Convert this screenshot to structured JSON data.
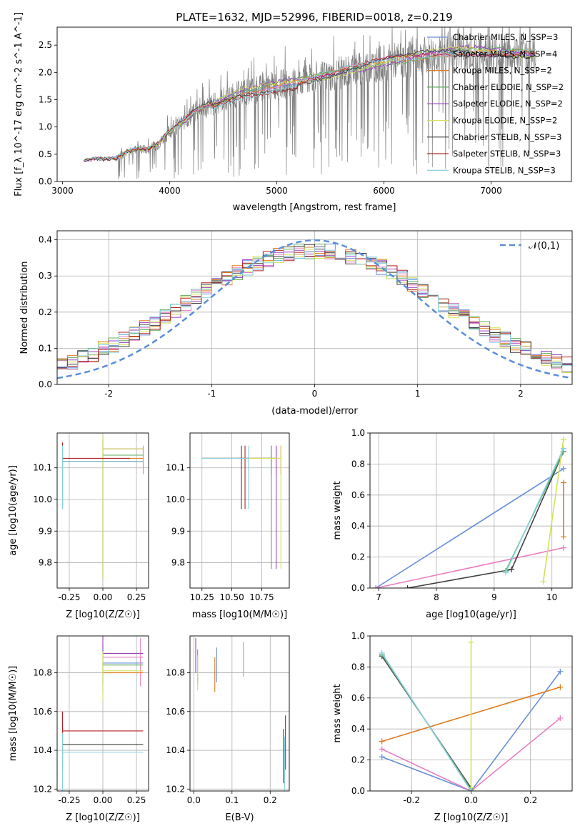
{
  "figure": {
    "title": "PLATE=1632, MJD=52996, FIBERID=0018, z=0.219"
  },
  "chart_data": [
    {
      "id": "spectrum",
      "type": "line",
      "xlabel": "wavelength [Angstrom, rest frame]",
      "ylabel": "Flux [f_λ 10^-17 erg cm^-2 s^-1 A^-1]",
      "xlim": [
        2950,
        7750
      ],
      "ylim": [
        0,
        2.83
      ],
      "xticks": [
        3000,
        4000,
        5000,
        6000,
        7000
      ],
      "yticks": [
        0.0,
        0.5,
        1.0,
        1.5,
        2.0,
        2.5
      ],
      "data": {
        "observed_color": "#7f7f7f",
        "continuum_x": [
          3200,
          3300,
          3400,
          3500,
          3600,
          3700,
          3800,
          3900,
          4000,
          4100,
          4200,
          4300,
          4400,
          4500,
          4600,
          4700,
          4800,
          4900,
          5000,
          5100,
          5200,
          5300,
          5400,
          5500,
          5600,
          5700,
          5800,
          5900,
          6000,
          6100,
          6200,
          6300,
          6400,
          6500,
          6600,
          6700,
          6800,
          6900,
          7000,
          7100,
          7200,
          7300,
          7400
        ],
        "continuum_y": [
          0.4,
          0.43,
          0.42,
          0.44,
          0.55,
          0.62,
          0.6,
          0.72,
          0.95,
          1.08,
          1.25,
          1.38,
          1.45,
          1.55,
          1.62,
          1.7,
          1.72,
          1.78,
          1.82,
          1.86,
          1.88,
          1.92,
          1.96,
          2.0,
          2.05,
          2.1,
          2.14,
          2.2,
          2.24,
          2.28,
          2.3,
          2.34,
          2.38,
          2.4,
          2.42,
          2.44,
          2.45,
          2.44,
          2.42,
          2.42,
          2.4,
          2.4,
          2.38
        ],
        "observed_noise_start": 3500
      },
      "legend_position": "upper right",
      "series": [
        {
          "name": "Chabrier MILES, N_SSP=3",
          "color": "#6a8fd8"
        },
        {
          "name": "Salpeter MILES, N_SSP=4",
          "color": "#e87fc0"
        },
        {
          "name": "Kroupa MILES, N_SSP=2",
          "color": "#e07b1f"
        },
        {
          "name": "Chabrier ELODIE, N_SSP=2",
          "color": "#5fa85f"
        },
        {
          "name": "Salpeter ELODIE, N_SSP=2",
          "color": "#9b3fc0"
        },
        {
          "name": "Kroupa ELODIE, N_SSP=2",
          "color": "#d4e157"
        },
        {
          "name": "Chabrier STELIB, N_SSP=3",
          "color": "#404040"
        },
        {
          "name": "Salpeter STELIB, N_SSP=3",
          "color": "#b22222"
        },
        {
          "name": "Kroupa STELIB, N_SSP=3",
          "color": "#88d0e0"
        }
      ]
    },
    {
      "id": "residuals",
      "type": "line",
      "xlabel": "(data-model)/error",
      "ylabel": "Normed distribution",
      "xlim": [
        -2.5,
        2.5
      ],
      "ylim": [
        0,
        0.425
      ],
      "xticks": [
        -2,
        -1,
        0,
        1,
        2
      ],
      "yticks": [
        0.0,
        0.1,
        0.2,
        0.3,
        0.4
      ],
      "grid": true,
      "gaussian_label": "𝒩(0,1)",
      "gaussian_color": "#5b8dd9",
      "bin_width": 0.1
    },
    {
      "id": "age_vs_Z",
      "type": "scatter",
      "xlabel": "Z [log10(Z/Z☉)]",
      "ylabel": "age  [log10(age/yr)]",
      "xlim": [
        -0.34,
        0.34
      ],
      "ylim": [
        9.72,
        10.21
      ],
      "xticks": [
        -0.25,
        0.0,
        0.25
      ],
      "yticks": [
        9.8,
        9.9,
        10.0,
        10.1
      ],
      "grid": true
    },
    {
      "id": "age_vs_mass",
      "type": "scatter",
      "xlabel": "mass [log10(M/M☉)]",
      "ylabel": "",
      "xlim": [
        10.15,
        10.98
      ],
      "ylim": [
        9.72,
        10.21
      ],
      "xticks": [
        10.25,
        10.5,
        10.75
      ],
      "yticks": [
        9.8,
        9.9,
        10.0,
        10.1
      ],
      "grid": true
    },
    {
      "id": "weight_vs_age",
      "type": "line",
      "xlabel": "age  [log10(age/yr)]",
      "ylabel": "mass weight",
      "xlim": [
        6.85,
        10.35
      ],
      "ylim": [
        0,
        1.0
      ],
      "xticks": [
        7,
        8,
        9,
        10
      ],
      "yticks": [
        0.0,
        0.2,
        0.4,
        0.6,
        0.8,
        1.0
      ],
      "grid": true
    },
    {
      "id": "mass_vs_Z",
      "type": "scatter",
      "xlabel": "Z [log10(Z/Z☉)]",
      "ylabel": "mass [log10(M/M☉)]",
      "xlim": [
        -0.34,
        0.34
      ],
      "ylim": [
        10.19,
        10.99
      ],
      "xticks": [
        -0.25,
        0.0,
        0.25
      ],
      "yticks": [
        10.2,
        10.4,
        10.6,
        10.8
      ],
      "grid": true
    },
    {
      "id": "mass_vs_ebv",
      "type": "scatter",
      "xlabel": "E(B-V)",
      "ylabel": "",
      "xlim": [
        -0.01,
        0.25
      ],
      "ylim": [
        10.19,
        10.99
      ],
      "xticks": [
        0.0,
        0.1,
        0.2
      ],
      "yticks": [
        10.2,
        10.4,
        10.6,
        10.8
      ],
      "grid": true
    },
    {
      "id": "weight_vs_Z",
      "type": "line",
      "xlabel": "Z [log10(Z/Z☉)]",
      "ylabel": "mass weight",
      "xlim": [
        -0.34,
        0.34
      ],
      "ylim": [
        0,
        1.0
      ],
      "xticks": [
        -0.2,
        0.0,
        0.2
      ],
      "yticks": [
        0.0,
        0.2,
        0.4,
        0.6,
        0.8,
        1.0
      ],
      "grid": true
    }
  ]
}
